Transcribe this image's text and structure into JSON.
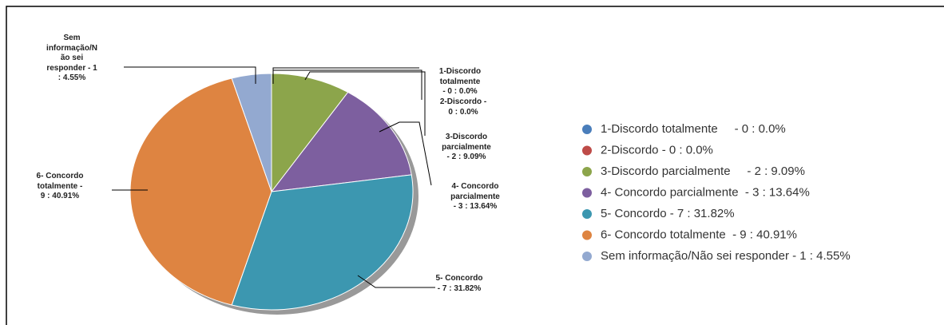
{
  "chart_data": {
    "type": "pie",
    "categories": [
      "1-Discordo totalmente     - 0 : 0.0%",
      "2-Discordo - 0 : 0.0%",
      "3-Discordo parcialmente     - 2 : 9.09%",
      "4- Concordo parcialmente  - 3 : 13.64%",
      "5- Concordo - 7 : 31.82%",
      "6- Concordo totalmente  - 9 : 40.91%",
      "Sem informação/Não sei responder - 1 : 4.55%"
    ],
    "values": [
      0,
      0,
      2,
      3,
      7,
      9,
      1
    ],
    "value_labels": [
      "1-Discordo\ntotalmente\n- 0 : 0.0%",
      "2-Discordo -\n0 : 0.0%",
      "3-Discordo\nparcialmente\n- 2 : 9.09%",
      "4- Concordo\nparcialmente\n- 3 : 13.64%",
      "5- Concordo\n- 7 : 31.82%",
      "6- Concordo\ntotalmente -\n9 : 40.91%",
      "Sem\ninformação/N\não sei\nresponder - 1\n: 4.55%"
    ],
    "colors": [
      "#4a7ebb",
      "#be4b48",
      "#8ca54b",
      "#7d5f9f",
      "#3c97b0",
      "#de8441",
      "#93a9d0"
    ]
  }
}
